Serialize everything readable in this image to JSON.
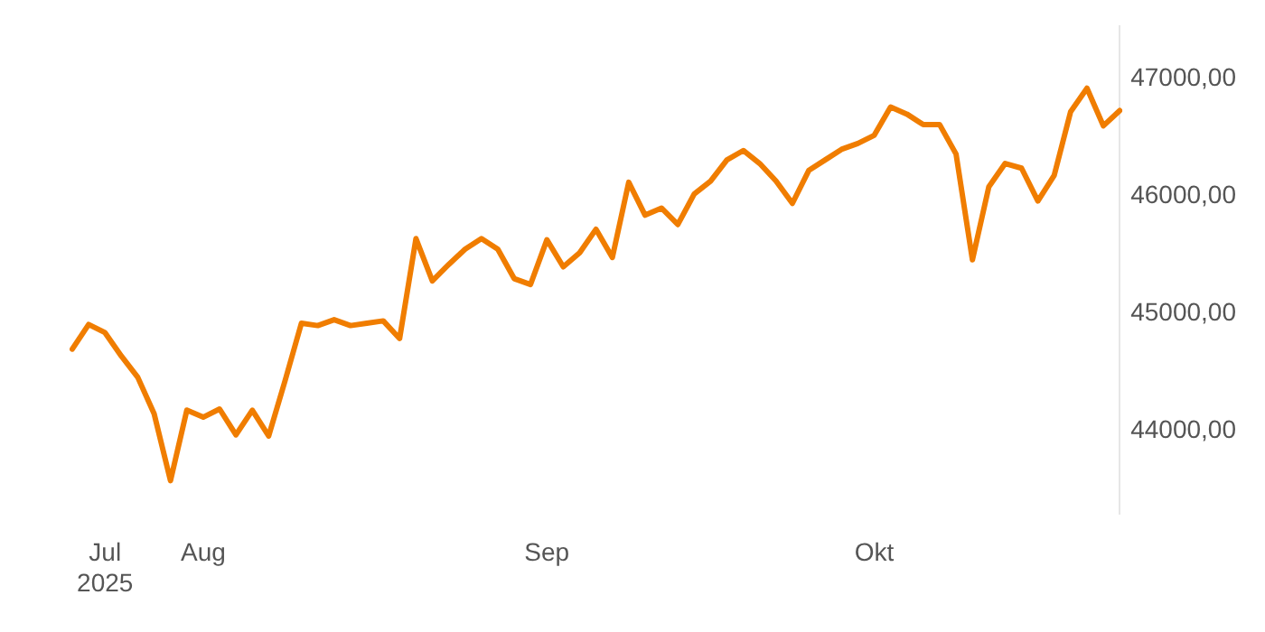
{
  "chart_data": {
    "type": "line",
    "categories": [
      null,
      null,
      "Jul 2025",
      null,
      null,
      null,
      null,
      null,
      "Aug",
      null,
      null,
      null,
      null,
      null,
      null,
      null,
      null,
      null,
      null,
      null,
      null,
      null,
      null,
      null,
      null,
      null,
      null,
      null,
      null,
      "Sep",
      null,
      null,
      null,
      null,
      null,
      null,
      null,
      null,
      null,
      null,
      null,
      null,
      null,
      null,
      null,
      null,
      null,
      null,
      null,
      "Okt",
      null,
      null,
      null,
      null,
      null,
      null,
      null,
      null,
      null,
      null,
      null,
      null,
      null,
      null,
      null
    ],
    "series": [
      {
        "color": "#f07d00",
        "values": [
          44700,
          44910,
          44840,
          44640,
          44460,
          44150,
          43580,
          44180,
          44120,
          44190,
          43970,
          44180,
          43960,
          44430,
          44920,
          44900,
          44950,
          44900,
          44920,
          44940,
          44790,
          45640,
          45280,
          45420,
          45550,
          45640,
          45550,
          45300,
          45250,
          45630,
          45400,
          45520,
          45720,
          45480,
          46120,
          45840,
          45900,
          45760,
          46020,
          46130,
          46310,
          46390,
          46280,
          46130,
          45940,
          46220,
          46310,
          46400,
          46450,
          46520,
          46760,
          46700,
          46610,
          46610,
          46360,
          45460,
          46080,
          46280,
          46240,
          45960,
          46180,
          46720,
          46920,
          46600,
          46730
        ]
      }
    ],
    "ylim": [
      43300,
      47450
    ],
    "yticks": [
      {
        "value": 44000,
        "label": "44000,00"
      },
      {
        "value": 45000,
        "label": "45000,00"
      },
      {
        "value": 46000,
        "label": "46000,00"
      },
      {
        "value": 47000,
        "label": "47000,00"
      }
    ],
    "grid": false,
    "legend": false,
    "marker": "none",
    "line_style": "solid"
  }
}
